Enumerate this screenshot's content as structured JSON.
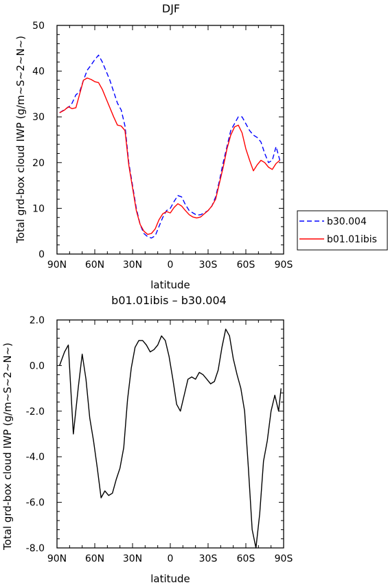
{
  "chart_data": [
    {
      "type": "line",
      "title": "DJF",
      "xlabel": "latitude",
      "ylabel": "Total grd-box cloud IWP (g/m~S~2~N~)",
      "x_tick_labels": [
        "90N",
        "60N",
        "30N",
        "0",
        "30S",
        "60S",
        "90S"
      ],
      "x_ticks": [
        -90,
        -60,
        -30,
        0,
        30,
        60,
        90
      ],
      "xlim": [
        -90,
        90
      ],
      "ylim": [
        0,
        50
      ],
      "y_ticks": [
        0,
        10,
        20,
        30,
        40,
        50
      ],
      "y_tick_labels": [
        "0",
        "10",
        "20",
        "30",
        "40",
        "50"
      ],
      "grid": false,
      "legend_position": "outside-right",
      "series": [
        {
          "name": "b30.004",
          "color": "#0000ff",
          "dash": "dashed",
          "x": [
            -88,
            -84,
            -80,
            -78,
            -75,
            -72,
            -69,
            -66,
            -63,
            -60,
            -57,
            -54,
            -51,
            -48,
            -45,
            -42,
            -39,
            -36,
            -33,
            -30,
            -27,
            -24,
            -21,
            -18,
            -15,
            -12,
            -9,
            -6,
            -3,
            0,
            3,
            6,
            9,
            12,
            15,
            18,
            21,
            24,
            27,
            30,
            33,
            36,
            39,
            42,
            45,
            48,
            51,
            54,
            57,
            60,
            63,
            66,
            69,
            72,
            75,
            78,
            81,
            84,
            87
          ],
          "values": [
            30.9,
            31.6,
            32.3,
            33.0,
            34.8,
            35.5,
            38.0,
            40.2,
            41.3,
            42.5,
            43.5,
            42.0,
            40.0,
            38.0,
            35.5,
            33.0,
            31.5,
            28.0,
            20.0,
            15.0,
            10.0,
            6.5,
            4.5,
            3.8,
            3.5,
            4.0,
            6.0,
            8.0,
            9.5,
            10.0,
            11.5,
            12.8,
            12.5,
            10.8,
            9.5,
            9.0,
            8.5,
            8.6,
            9.0,
            9.5,
            10.5,
            12.5,
            16.0,
            20.0,
            23.5,
            27.0,
            28.5,
            30.0,
            30.0,
            28.5,
            27.0,
            26.0,
            25.5,
            24.5,
            22.0,
            20.0,
            20.5,
            23.5,
            20.5
          ]
        },
        {
          "name": "b01.01ibis",
          "color": "#ff0000",
          "dash": "solid",
          "x": [
            -88,
            -84,
            -81,
            -78,
            -75,
            -72,
            -69,
            -66,
            -63,
            -60,
            -57,
            -54,
            -51,
            -48,
            -45,
            -42,
            -39,
            -36,
            -33,
            -30,
            -27,
            -24,
            -21,
            -18,
            -15,
            -12,
            -9,
            -6,
            -3,
            0,
            3,
            6,
            9,
            12,
            15,
            18,
            21,
            24,
            27,
            30,
            33,
            36,
            39,
            42,
            45,
            48,
            51,
            54,
            57,
            60,
            63,
            66,
            69,
            72,
            75,
            78,
            81,
            84,
            87
          ],
          "values": [
            30.9,
            31.5,
            32.2,
            31.8,
            32.0,
            35.0,
            38.0,
            38.5,
            38.2,
            37.7,
            37.5,
            36.0,
            34.0,
            32.0,
            30.0,
            28.2,
            28.0,
            27.0,
            19.5,
            14.5,
            9.5,
            6.5,
            5.0,
            4.3,
            4.5,
            5.5,
            7.5,
            8.8,
            9.3,
            9.0,
            10.2,
            11.0,
            10.5,
            9.5,
            8.6,
            8.1,
            7.9,
            8.1,
            8.8,
            9.5,
            10.5,
            12.0,
            15.5,
            19.0,
            23.0,
            26.0,
            27.8,
            28.2,
            26.5,
            23.0,
            20.5,
            18.2,
            19.5,
            20.5,
            20.0,
            19.0,
            18.5,
            19.8,
            20.5
          ]
        }
      ]
    },
    {
      "type": "line",
      "title": "b01.01ibis – b30.004",
      "xlabel": "latitude",
      "ylabel": "Total grd-box cloud IWP (g/m~S~2~N~)",
      "x_tick_labels": [
        "90N",
        "60N",
        "30N",
        "0",
        "30S",
        "60S",
        "90S"
      ],
      "x_ticks": [
        -90,
        -60,
        -30,
        0,
        30,
        60,
        90
      ],
      "xlim": [
        -90,
        90
      ],
      "ylim": [
        -8,
        2
      ],
      "y_ticks": [
        -8,
        -6,
        -4,
        -2,
        0,
        2
      ],
      "y_tick_labels": [
        "-8.0",
        "-6.0",
        "-4.0",
        "-2.0",
        "0.0",
        "2.0"
      ],
      "grid": false,
      "series": [
        {
          "color": "#000000",
          "dash": "solid",
          "x": [
            -88,
            -84,
            -81,
            -77,
            -73,
            -70,
            -67,
            -64,
            -61,
            -58,
            -55,
            -52,
            -49,
            -46,
            -43,
            -40,
            -37,
            -34,
            -31,
            -28,
            -25,
            -22,
            -19,
            -16,
            -13,
            -10,
            -7,
            -4,
            -1,
            2,
            5,
            8,
            11,
            14,
            17,
            20,
            23,
            26,
            29,
            32,
            35,
            38,
            41,
            44,
            47,
            50,
            53,
            56,
            59,
            62,
            65,
            68,
            71,
            74,
            77,
            80,
            83,
            86,
            88
          ],
          "values": [
            0.0,
            0.6,
            0.9,
            -3.0,
            -0.9,
            0.5,
            -0.6,
            -2.3,
            -3.3,
            -4.5,
            -5.8,
            -5.5,
            -5.7,
            -5.6,
            -5.0,
            -4.5,
            -3.6,
            -1.5,
            -0.1,
            0.8,
            1.1,
            1.1,
            0.9,
            0.6,
            0.7,
            0.9,
            1.3,
            1.1,
            0.4,
            -0.6,
            -1.7,
            -2.0,
            -1.3,
            -0.6,
            -0.5,
            -0.6,
            -0.3,
            -0.4,
            -0.6,
            -0.8,
            -0.7,
            -0.2,
            0.8,
            1.6,
            1.3,
            0.3,
            -0.4,
            -1.0,
            -2.0,
            -4.5,
            -7.2,
            -8.0,
            -6.5,
            -4.2,
            -3.3,
            -2.0,
            -1.3,
            -2.0,
            -1.0
          ]
        }
      ]
    }
  ]
}
